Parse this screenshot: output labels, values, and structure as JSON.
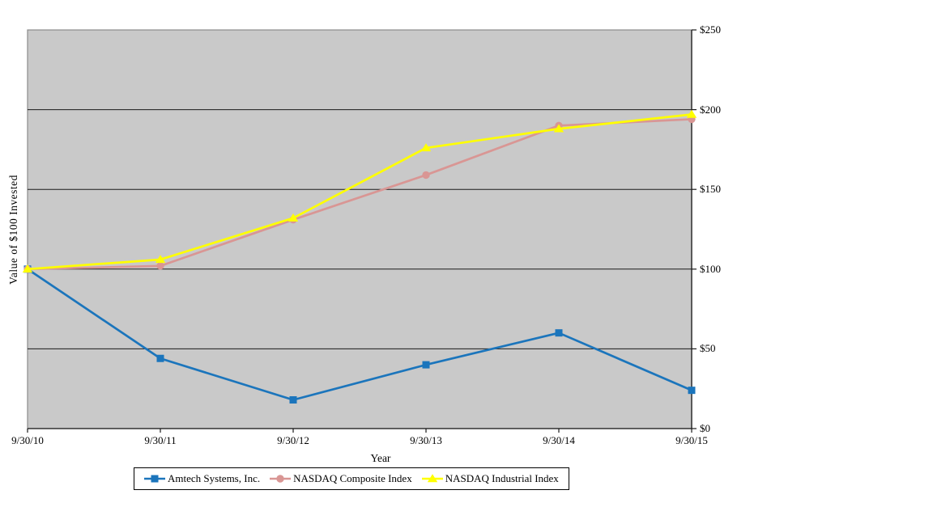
{
  "chart_data": {
    "type": "line",
    "title": "",
    "xlabel": "Year",
    "ylabel": "Value of $100 Invested",
    "categories": [
      "9/30/10",
      "9/30/11",
      "9/30/12",
      "9/30/13",
      "9/30/14",
      "9/30/15"
    ],
    "ylim": [
      0,
      250
    ],
    "ytick_step": 50,
    "ytick_labels": [
      "$0",
      "$50",
      "$100",
      "$150",
      "$200",
      "$250"
    ],
    "grid": true,
    "legend_position": "bottom",
    "plot_bg_color": "#C9C9C9",
    "plot_border_color": "#8C8C8C",
    "gridline_color": "#1a1a1a",
    "axis_color": "#1a1a1a",
    "series": [
      {
        "name": "Amtech Systems, Inc.",
        "color": "#1B75BC",
        "marker": "square",
        "values": [
          100,
          44,
          18,
          40,
          60,
          24
        ]
      },
      {
        "name": "NASDAQ Composite Index",
        "color": "#D99694",
        "marker": "circle",
        "values": [
          100,
          102,
          131,
          159,
          190,
          194
        ]
      },
      {
        "name": "NASDAQ Industrial Index",
        "color": "#FFFF00",
        "marker": "triangle",
        "values": [
          100,
          106,
          132,
          176,
          188,
          197
        ]
      }
    ]
  }
}
